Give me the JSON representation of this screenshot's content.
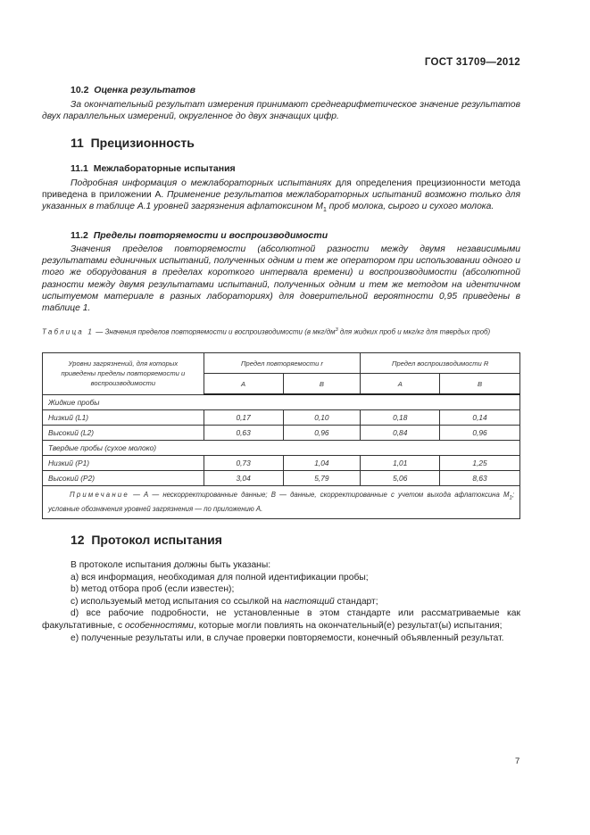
{
  "header": {
    "doc_id": "ГОСТ 31709—2012"
  },
  "s10_2": {
    "num": "10.2",
    "title": "Оценка результатов",
    "text": "За окончательный результат измерения принимают среднеарифметическое значение результатов двух параллельных измерений, округленное до двух значащих цифр."
  },
  "s11": {
    "num": "11",
    "title": "Прецизионность"
  },
  "s11_1": {
    "num": "11.1",
    "title": "Межлабораторные испытания",
    "t1": "Подробная информация о межлабораторных испытаниях",
    "t2": " для определения прецизионности метода приведена в приложении А. ",
    "t3": "Применение результатов межлабораторных испытаний возможно только для указанных в таблице А.1 уровней загрязнения афлатоксином М",
    "sub": "1",
    "t4": " проб молока, сырого и сухого молока."
  },
  "s11_2": {
    "num": "11.2",
    "title": "Пределы повторяемости и воспроизводимости",
    "text": "Значения пределов повторяемости (абсолютной разности между двумя независимыми результатами единичных испытаний, полученных одним и тем же оператором при использовании одного и того же оборудования в пределах короткого интервала времени) и воспроизводимости (абсолютной разности между двумя результатами испытаний, полученных одним и тем же методом на идентичном испытуемом материале в разных лабораториях) для доверительной вероятности 0,95 приведены в таблице 1."
  },
  "table": {
    "caption_label": "Таблица 1",
    "caption_text": " — Значения пределов повторяемости и воспроизводимости (в мкг/дм",
    "caption_sup": "3",
    "caption_text2": " для жидких проб и мкг/кг для твердых проб)",
    "head_levels": "Уровни загрязнений, для которых приведены пределы повторяемости и воспроизводимости",
    "head_r": "Предел повторяемости r",
    "head_R": "Предел воспроизводимости R",
    "sub_a": "А",
    "sub_b": "В",
    "groups": [
      {
        "label": "Жидкие пробы",
        "rows": [
          {
            "level": "Низкий (L1)",
            "values": [
              "0,17",
              "0,10",
              "0,18",
              "0,14"
            ]
          },
          {
            "level": "Высокий (L2)",
            "values": [
              "0,63",
              "0,96",
              "0,84",
              "0,96"
            ]
          }
        ]
      },
      {
        "label": "Твердые пробы (сухое молоко)",
        "rows": [
          {
            "level": "Низкий (Р1)",
            "values": [
              "0,73",
              "1,04",
              "1,01",
              "1,25"
            ]
          },
          {
            "level": "Высокий (Р2)",
            "values": [
              "3,04",
              "5,79",
              "5,06",
              "8,63"
            ]
          }
        ]
      }
    ],
    "note_label": "Примечание",
    "note_text": " — А — нескорректированные данные; В — данные, скорректированные с учетом выхода афлатоксина М",
    "note_sub": "1",
    "note_text2": "; условные обозначения уровней загрязнения — по приложению А."
  },
  "s12": {
    "num": "12",
    "title": "Протокол испытания",
    "intro": "В протоколе испытания должны быть указаны:",
    "a": "а)  вся информация, необходимая для полной идентификации пробы;",
    "b": "b)  метод отбора проб (если известен);",
    "c1": "c)  используемый метод испытания со ссылкой на ",
    "c2": "настоящий",
    "c3": " стандарт;",
    "d1": "d) все рабочие подробности, не установленные в этом стандарте или рассматриваемые как факультативные, с ",
    "d2": "особенностями",
    "d3": ", которые могли повлиять на окончательный(е) результат(ы) испытания;",
    "e": "е) полученные результаты или, в случае проверки повторяемости, конечный объявленный результат."
  },
  "footer": {
    "page_number": "7"
  }
}
